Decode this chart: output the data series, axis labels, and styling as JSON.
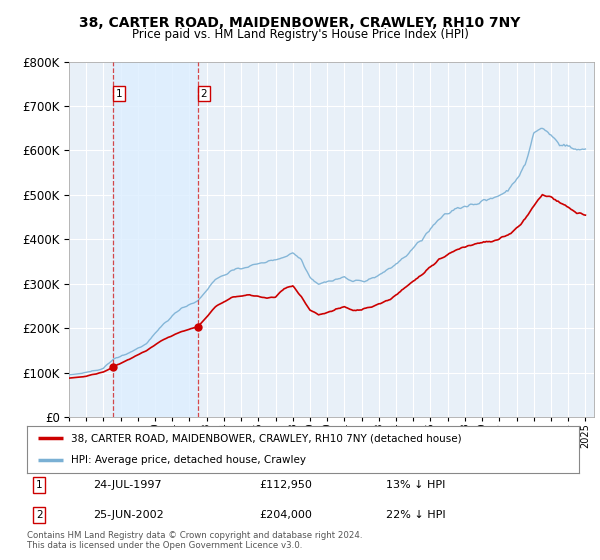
{
  "title": "38, CARTER ROAD, MAIDENBOWER, CRAWLEY, RH10 7NY",
  "subtitle": "Price paid vs. HM Land Registry's House Price Index (HPI)",
  "property_label": "38, CARTER ROAD, MAIDENBOWER, CRAWLEY, RH10 7NY (detached house)",
  "hpi_label": "HPI: Average price, detached house, Crawley",
  "sale1_date": "24-JUL-1997",
  "sale1_price": 112950,
  "sale1_hpi_text": "13% ↓ HPI",
  "sale2_date": "25-JUN-2002",
  "sale2_price": 204000,
  "sale2_hpi_text": "22% ↓ HPI",
  "sale1_x": 1997.56,
  "sale2_x": 2002.49,
  "price_color": "#cc0000",
  "hpi_color": "#7ab0d4",
  "shade_color": "#ddeeff",
  "bg_color": "#e8f0f8",
  "grid_color": "#ffffff",
  "footer": "Contains HM Land Registry data © Crown copyright and database right 2024.\nThis data is licensed under the Open Government Licence v3.0.",
  "ylim": [
    0,
    800000
  ],
  "xlim_start": 1995.0,
  "xlim_end": 2025.5
}
